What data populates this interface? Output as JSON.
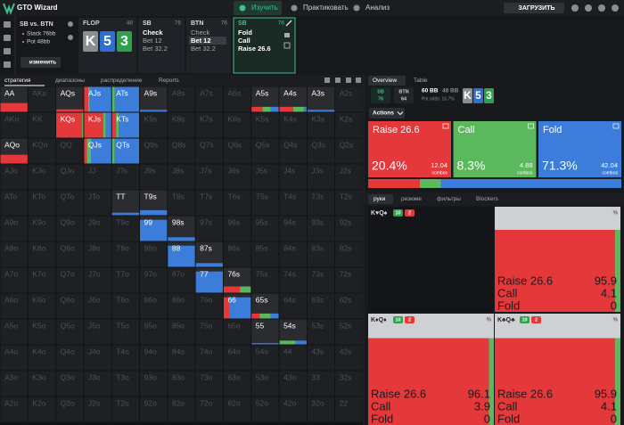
{
  "header": {
    "logo": "GTO Wizard",
    "nav": [
      "Изучить",
      "Практиковать",
      "Анализ"
    ],
    "active_nav": 0,
    "upload": "ЗАГРУЗИТЬ"
  },
  "spot": {
    "title": "SB vs. BTN",
    "stack": "Stack 76bb",
    "pot": "Pot 48bb",
    "change": "изменить"
  },
  "flop": {
    "label": "FLOP",
    "pot": 48,
    "cards": [
      {
        "rank": "K",
        "color": "#8a8d92"
      },
      {
        "rank": "5",
        "color": "#2f6fd0"
      },
      {
        "rank": "3",
        "color": "#2ea24a"
      }
    ]
  },
  "line": [
    {
      "player": "SB",
      "stack": 76,
      "options": [
        "Check",
        "Bet 12",
        "Bet 32.2"
      ],
      "selected": 0
    },
    {
      "player": "BTN",
      "stack": 76,
      "options": [
        "Check",
        "Bet 12",
        "Bet 32.2"
      ],
      "selected": 1
    },
    {
      "player": "SB",
      "stack": 76,
      "options": [
        "Fold",
        "Call",
        "Raise 26.6"
      ],
      "current": true
    }
  ],
  "matrix_tabs": [
    "стратегия",
    "диапазоны",
    "распределение",
    "Reports"
  ],
  "colors": {
    "raise": "#e5383b",
    "call": "#5cb85c",
    "fold": "#3b7dd8"
  },
  "matrix": [
    [
      {
        "hand": "AA",
        "raise": 100,
        "call": 0,
        "fold": 0,
        "weight": 0.35
      },
      "AKs",
      {
        "hand": "AQs",
        "raise": 100,
        "call": 0,
        "fold": 0,
        "weight": 0.1
      },
      {
        "hand": "AJs",
        "raise": 15,
        "call": 5,
        "fold": 80,
        "weight": 1
      },
      {
        "hand": "ATs",
        "raise": 0,
        "call": 10,
        "fold": 90,
        "weight": 1
      },
      {
        "hand": "A9s",
        "raise": 0,
        "call": 0,
        "fold": 100,
        "weight": 0.08
      },
      "A8s",
      "A7s",
      "A6s",
      {
        "hand": "A5s",
        "raise": 40,
        "call": 30,
        "fold": 30,
        "weight": 0.2
      },
      {
        "hand": "A4s",
        "raise": 50,
        "call": 40,
        "fold": 10,
        "weight": 0.2
      },
      {
        "hand": "A3s",
        "raise": 0,
        "call": 0,
        "fold": 100,
        "weight": 0.08
      },
      "A2s"
    ],
    [
      "AKo",
      "KK",
      {
        "hand": "KQs",
        "raise": 95,
        "call": 5,
        "fold": 0,
        "weight": 1
      },
      {
        "hand": "KJs",
        "raise": 70,
        "call": 10,
        "fold": 20,
        "weight": 1
      },
      {
        "hand": "KTs",
        "raise": 15,
        "call": 10,
        "fold": 75,
        "weight": 1
      },
      "K9s",
      "K8s",
      "K7s",
      "K6s",
      "K5s",
      "K4s",
      "K3s",
      "K2s"
    ],
    [
      {
        "hand": "AQo",
        "raise": 100,
        "call": 0,
        "fold": 0,
        "weight": 0.35
      },
      "KQo",
      "QQ",
      {
        "hand": "QJs",
        "raise": 10,
        "call": 15,
        "fold": 75,
        "weight": 1
      },
      {
        "hand": "QTs",
        "raise": 0,
        "call": 10,
        "fold": 90,
        "weight": 1
      },
      "Q9s",
      "Q8s",
      "Q7s",
      "Q6s",
      "Q5s",
      "Q4s",
      "Q3s",
      "Q2s"
    ],
    [
      "AJo",
      "KJo",
      "QJo",
      "JJ",
      "JTs",
      "J9s",
      "J8s",
      "J7s",
      "J6s",
      "J5s",
      "J4s",
      "J3s",
      "J2s"
    ],
    [
      "ATo",
      "KTo",
      "QTo",
      "JTo",
      {
        "hand": "TT",
        "raise": 0,
        "call": 0,
        "fold": 100,
        "weight": 0.1
      },
      {
        "hand": "T9s",
        "raise": 0,
        "call": 0,
        "fold": 100,
        "weight": 0.2
      },
      "T8s",
      "T7s",
      "T6s",
      "T5s",
      "T4s",
      "T3s",
      "T2s"
    ],
    [
      "A9o",
      "K9o",
      "Q9o",
      "J9o",
      "T9o",
      {
        "hand": "99",
        "raise": 0,
        "call": 0,
        "fold": 100,
        "weight": 0.85
      },
      {
        "hand": "98s",
        "raise": 0,
        "call": 0,
        "fold": 100,
        "weight": 0.15
      },
      "97s",
      "96s",
      "95s",
      "94s",
      "93s",
      "92s"
    ],
    [
      "A8o",
      "K8o",
      "Q8o",
      "J8o",
      "T8o",
      "98o",
      {
        "hand": "88",
        "raise": 0,
        "call": 0,
        "fold": 100,
        "weight": 0.85
      },
      {
        "hand": "87s",
        "raise": 0,
        "call": 0,
        "fold": 100,
        "weight": 0.15
      },
      "86s",
      "85s",
      "84s",
      "83s",
      "82s"
    ],
    [
      "A7o",
      "K7o",
      "Q7o",
      "J7o",
      "T7o",
      "97o",
      "87o",
      {
        "hand": "77",
        "raise": 0,
        "call": 0,
        "fold": 100,
        "weight": 0.85
      },
      {
        "hand": "76s",
        "raise": 60,
        "call": 40,
        "fold": 0,
        "weight": 0.25
      },
      "75s",
      "74s",
      "73s",
      "72s"
    ],
    [
      "A6o",
      "K6o",
      "Q6o",
      "J6o",
      "T6o",
      "96o",
      "86o",
      "76o",
      {
        "hand": "66",
        "raise": 20,
        "call": 0,
        "fold": 80,
        "weight": 0.85
      },
      {
        "hand": "65s",
        "raise": 30,
        "call": 40,
        "fold": 30,
        "weight": 0.2
      },
      "64s",
      "63s",
      "62s"
    ],
    [
      "A5o",
      "K5o",
      "Q5o",
      "J5o",
      "T5o",
      "95o",
      "85o",
      "75o",
      "65o",
      {
        "hand": "55",
        "raise": 0,
        "call": 0,
        "fold": 100,
        "weight": 0.05
      },
      {
        "hand": "54s",
        "raise": 0,
        "call": 60,
        "fold": 40,
        "weight": 0.15
      },
      "53s",
      "52s"
    ],
    [
      "A4o",
      "K4o",
      "Q4o",
      "J4o",
      "T4o",
      "94o",
      "84o",
      "74o",
      "64o",
      "54o",
      "44",
      "43s",
      "42s"
    ],
    [
      "A3o",
      "K3o",
      "Q3o",
      "J3o",
      "T3o",
      "93o",
      "83o",
      "73o",
      "63o",
      "53o",
      "43o",
      "33",
      "32s"
    ],
    [
      "A2o",
      "K2o",
      "Q2o",
      "J2o",
      "T2o",
      "92o",
      "82o",
      "72o",
      "62o",
      "52o",
      "42o",
      "32o",
      "22"
    ]
  ],
  "panel": {
    "tabs": [
      "Overview",
      "Table"
    ],
    "players": [
      {
        "name": "SB",
        "stack": 76
      },
      {
        "name": "BTN",
        "stack": 64
      }
    ],
    "pot": "60 BB",
    "to_call": "48 BB",
    "pot_odds": "Pot odds: 16.7%",
    "cards": [
      {
        "rank": "K",
        "color": "#8a8d92"
      },
      {
        "rank": "5",
        "color": "#2f6fd0"
      },
      {
        "rank": "3",
        "color": "#2ea24a"
      }
    ],
    "actions_menu": "Actions",
    "actions": [
      {
        "name": "Raise 26.6",
        "color": "#e5383b",
        "value": 20.4,
        "value_label": "20.4%",
        "combos": 12.04
      },
      {
        "name": "Call",
        "color": "#5cb85c",
        "value": 8.3,
        "value_label": "8.3%",
        "combos": 4.88
      },
      {
        "name": "Fold",
        "color": "#3b7dd8",
        "value": 71.3,
        "value_label": "71.3%",
        "combos": 42.04
      }
    ],
    "combos_label": "combos",
    "hand_tabs": [
      "руки",
      "резюме",
      "фильтры",
      "Blockers"
    ],
    "hands": [
      {
        "label": "K♥Q♠",
        "blockers": [
          10,
          2
        ]
      },
      {
        "unit": "%",
        "weight": 0.78,
        "rows": [
          {
            "name": "Raise 26.6",
            "value": 95.9
          },
          {
            "name": "Call",
            "value": 4.1
          },
          {
            "name": "Fold",
            "value": 0
          }
        ]
      },
      {
        "label": "K♦Q♦",
        "blockers": [
          10,
          2
        ],
        "unit": "%",
        "weight": 0.78,
        "rows": [
          {
            "name": "Raise 26.6",
            "value": 96.1
          },
          {
            "name": "Call",
            "value": 3.9
          },
          {
            "name": "Fold",
            "value": 0
          }
        ]
      },
      {
        "label": "K♣Q♣",
        "blockers": [
          10,
          2
        ],
        "unit": "%",
        "weight": 0.78,
        "rows": [
          {
            "name": "Raise 26.6",
            "value": 95.9
          },
          {
            "name": "Call",
            "value": 4.1
          },
          {
            "name": "Fold",
            "value": 0
          }
        ]
      }
    ]
  }
}
